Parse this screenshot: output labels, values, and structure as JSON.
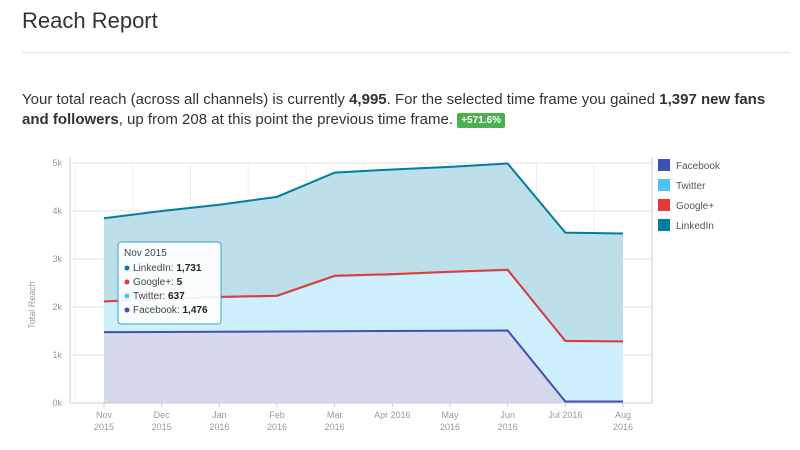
{
  "report": {
    "title": "Reach Report",
    "summary": {
      "part1": "Your total reach (across all channels) is currently ",
      "total_reach": "4,995",
      "part2": ". For the selected time frame you gained ",
      "gained": "1,397 new fans and followers",
      "part3": ", up from 208 at this point the previous time frame.",
      "change_badge": "+571.6%"
    }
  },
  "chart_data": {
    "type": "area",
    "stacked": true,
    "ylabel": "Total Reach",
    "ylim": [
      0,
      5000
    ],
    "y_ticks": [
      "0k",
      "1k",
      "2k",
      "3k",
      "4k",
      "5k"
    ],
    "x_ticks": [
      {
        "line1": "Nov",
        "line2": "2015"
      },
      {
        "line1": "Dec",
        "line2": "2015"
      },
      {
        "line1": "Jan",
        "line2": "2016"
      },
      {
        "line1": "Feb",
        "line2": "2016"
      },
      {
        "line1": "Mar",
        "line2": "2016"
      },
      {
        "line1": "Apr 2016",
        "line2": ""
      },
      {
        "line1": "May",
        "line2": "2016"
      },
      {
        "line1": "Jun",
        "line2": "2016"
      },
      {
        "line1": "Jul 2016",
        "line2": ""
      },
      {
        "line1": "Aug",
        "line2": "2016"
      }
    ],
    "x": [
      0,
      1,
      2,
      3,
      4,
      5,
      6,
      7,
      8,
      9
    ],
    "series": [
      {
        "name": "Facebook",
        "color": "#3f51b5",
        "fill": "#d6d8ee",
        "values": [
          1476,
          1480,
          1485,
          1490,
          1495,
          1500,
          1505,
          1510,
          30,
          30
        ]
      },
      {
        "name": "Twitter",
        "color": "#4fc3f7",
        "fill": "#cdf0fc",
        "values": [
          637,
          680,
          720,
          740,
          1150,
          1180,
          1225,
          1260,
          1260,
          1250
        ]
      },
      {
        "name": "Google+",
        "color": "#e53935",
        "fill": "#e53935",
        "values": [
          5,
          5,
          5,
          5,
          5,
          5,
          5,
          5,
          5,
          5
        ]
      },
      {
        "name": "LinkedIn",
        "color": "#007ea0",
        "fill": "#bddfe9",
        "values": [
          1731,
          1835,
          1920,
          2060,
          2150,
          2180,
          2185,
          2215,
          2255,
          2245
        ]
      }
    ],
    "legend_position": "right",
    "grid": true,
    "tooltip": {
      "title": "Nov 2015",
      "point_index": 0,
      "rows": [
        {
          "label": "LinkedIn:",
          "value": "1,731",
          "color": "#007ea0"
        },
        {
          "label": "Google+:",
          "value": "5",
          "color": "#e53935"
        },
        {
          "label": "Twitter:",
          "value": "637",
          "color": "#4fc3f7"
        },
        {
          "label": "Facebook:",
          "value": "1,476",
          "color": "#3f51b5"
        }
      ]
    }
  }
}
